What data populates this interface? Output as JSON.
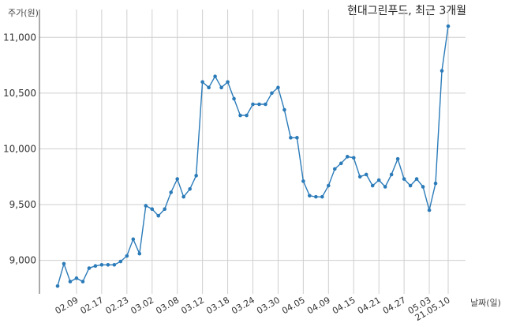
{
  "chart_data": {
    "type": "line",
    "title": "현대그린푸드, 최근 3개월",
    "ylabel": "주가(원)",
    "xlabel": "날짜(일)",
    "ylim": [
      8700,
      11250
    ],
    "yticks": [
      9000,
      9500,
      10000,
      10500,
      11000
    ],
    "ytick_labels": [
      "9,000",
      "9,500",
      "10,000",
      "10,500",
      "11,000"
    ],
    "xtick_labels": [
      {
        "label": "02.09",
        "index": 3
      },
      {
        "label": "02.17",
        "index": 7
      },
      {
        "label": "02.23",
        "index": 11
      },
      {
        "label": "03.02",
        "index": 15
      },
      {
        "label": "03.08",
        "index": 19
      },
      {
        "label": "03.12",
        "index": 23
      },
      {
        "label": "03.18",
        "index": 27
      },
      {
        "label": "03.24",
        "index": 31
      },
      {
        "label": "03.30",
        "index": 35
      },
      {
        "label": "04.05",
        "index": 39
      },
      {
        "label": "04.09",
        "index": 43
      },
      {
        "label": "04.15",
        "index": 47
      },
      {
        "label": "04.21",
        "index": 51
      },
      {
        "label": "04.27",
        "index": 55
      },
      {
        "label": "05.03",
        "index": 59
      },
      {
        "label": "21.05.10",
        "index": 62
      }
    ],
    "grid": true,
    "series": [
      {
        "color": "#2b7bb9",
        "values": [
          8770,
          8970,
          8810,
          8840,
          8810,
          8930,
          8950,
          8960,
          8960,
          8960,
          8990,
          9040,
          9190,
          9060,
          9490,
          9460,
          9400,
          9460,
          9610,
          9730,
          9570,
          9640,
          9760,
          10600,
          10550,
          10650,
          10550,
          10600,
          10450,
          10300,
          10300,
          10400,
          10400,
          10400,
          10500,
          10550,
          10350,
          10100,
          10100,
          9710,
          9580,
          9570,
          9570,
          9670,
          9820,
          9870,
          9930,
          9920,
          9750,
          9770,
          9670,
          9720,
          9660,
          9770,
          9910,
          9730,
          9670,
          9730,
          9660,
          9450,
          9690,
          10700,
          11100
        ]
      }
    ]
  }
}
